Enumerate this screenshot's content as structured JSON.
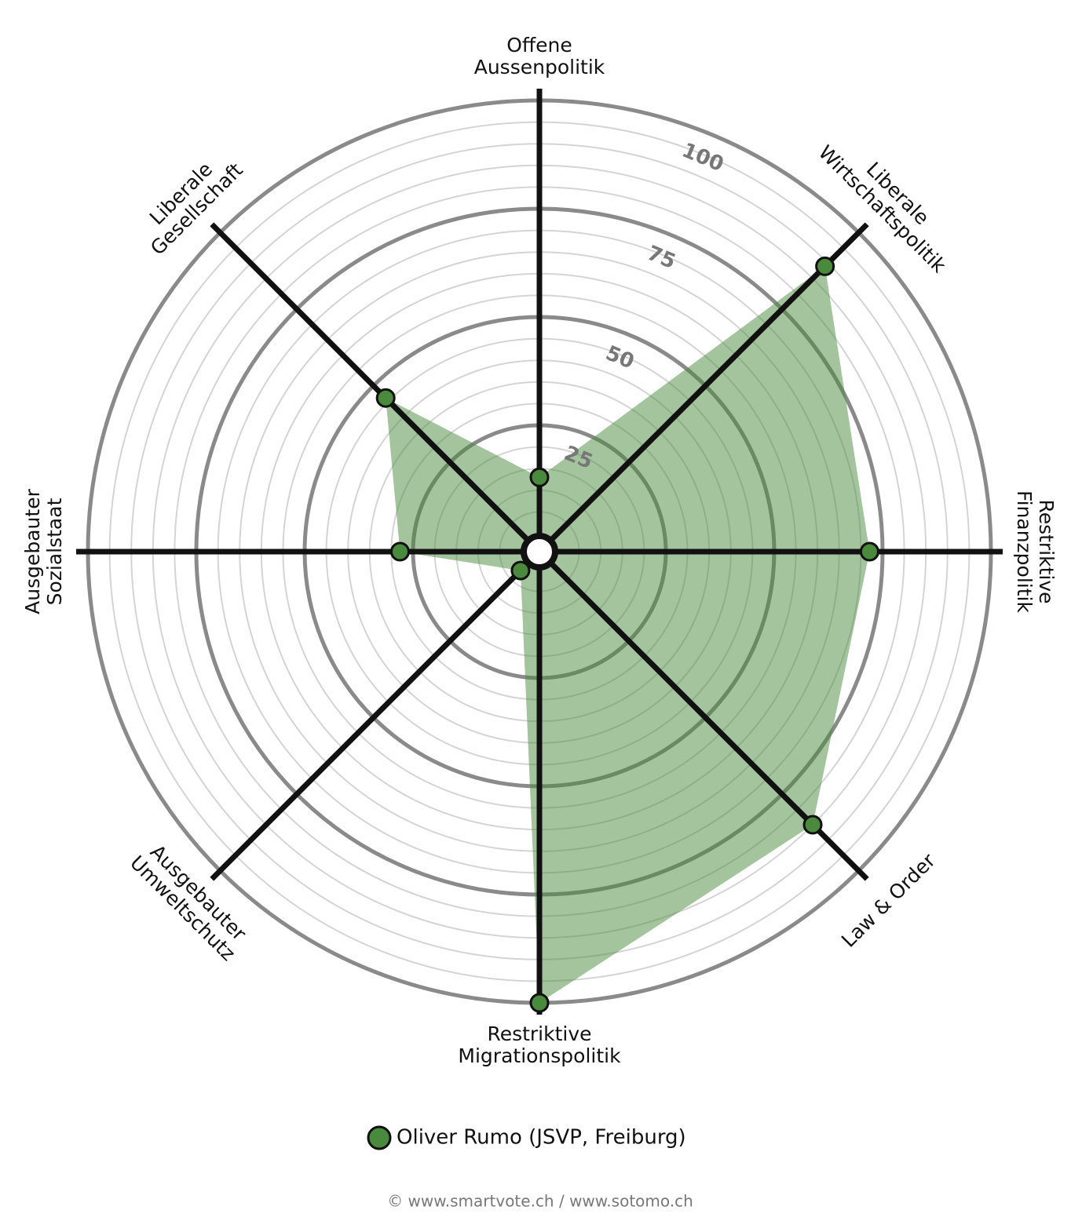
{
  "chart_data": {
    "type": "radar",
    "categories": [
      "Offene\nAussenpolitik",
      "Liberale\nWirtschaftspolitik",
      "Restriktive\nFinanzpolitik",
      "Law & Order",
      "Restriktive\nMigrationspolitik",
      "Ausgebauter\nUmweltschutz",
      "Ausgebauter\nSozialstaat",
      "Liberale\nGesellschaft"
    ],
    "series": [
      {
        "name": "Oliver Rumo (JSVP, Freiburg)",
        "color": "#4a8a3c",
        "values": [
          13,
          89,
          72,
          85,
          100,
          2,
          28,
          46
        ]
      }
    ],
    "ylim": [
      0,
      100
    ],
    "yticks": [
      25,
      50,
      75,
      100
    ],
    "grid": true,
    "minor_grid_step": 5,
    "legend": "bottom",
    "source": "© www.smartvote.ch / www.sotomo.ch"
  }
}
